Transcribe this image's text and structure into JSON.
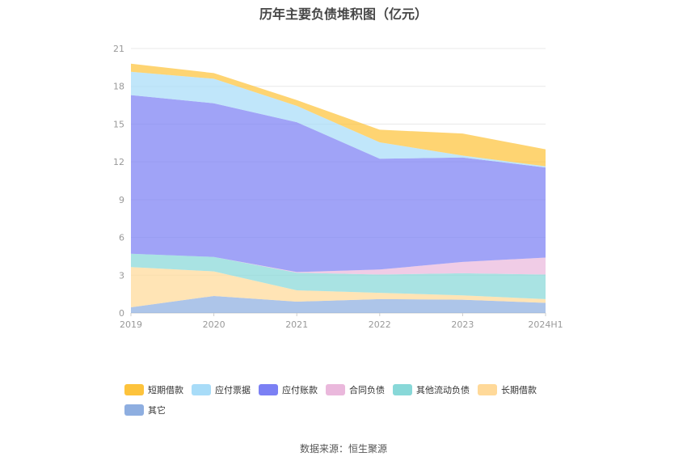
{
  "title": "历年主要负债堆积图（亿元）",
  "source": "数据来源：恒生聚源",
  "chart_data": {
    "type": "area",
    "stacked": true,
    "title": "历年主要负债堆积图（亿元）",
    "categories": [
      "2019",
      "2020",
      "2021",
      "2022",
      "2023",
      "2024H1"
    ],
    "ylim": [
      0,
      21
    ],
    "yticks": [
      0,
      3,
      6,
      9,
      12,
      15,
      18,
      21
    ],
    "grid": true,
    "legend_position": "bottom",
    "series": [
      {
        "name": "其它",
        "color": "#8eaee0",
        "values": [
          0.45,
          1.35,
          0.9,
          1.1,
          1.05,
          0.8
        ]
      },
      {
        "name": "长期借款",
        "color": "#ffd999",
        "values": [
          3.2,
          1.95,
          0.9,
          0.5,
          0.35,
          0.3
        ]
      },
      {
        "name": "其他流动负债",
        "color": "#88d8d8",
        "values": [
          1.05,
          1.15,
          1.4,
          1.45,
          1.75,
          1.95
        ]
      },
      {
        "name": "合同负债",
        "color": "#eab8dc",
        "values": [
          0.0,
          0.0,
          0.05,
          0.4,
          0.9,
          1.35
        ]
      },
      {
        "name": "应付账款",
        "color": "#7b80f4",
        "values": [
          12.6,
          12.2,
          11.9,
          8.8,
          8.3,
          7.15
        ]
      },
      {
        "name": "应付票据",
        "color": "#a8dcf8",
        "values": [
          1.85,
          1.95,
          1.3,
          1.3,
          0.15,
          0.1
        ]
      },
      {
        "name": "短期借款",
        "color": "#fdc33c",
        "values": [
          0.65,
          0.45,
          0.45,
          1.0,
          1.75,
          1.35
        ]
      }
    ]
  }
}
